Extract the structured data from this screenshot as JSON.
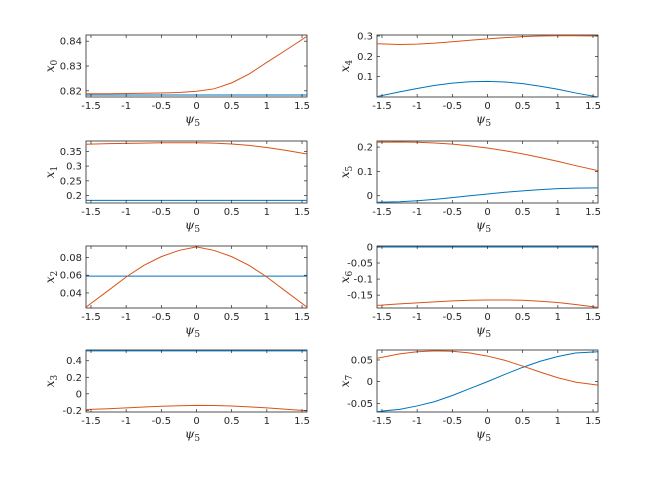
{
  "colors": {
    "series_1": "#0072BD",
    "series_2": "#D95319",
    "axes": "#262626"
  },
  "chart_data": [
    {
      "type": "line",
      "xlabel": "ψ",
      "xlabel_sub": "5",
      "ylabel": "x",
      "ylabel_sub": "0",
      "xlim": [
        -1.5708,
        1.5708
      ],
      "ylim": [
        0.8175,
        0.8425
      ],
      "xticks": [
        -1.5,
        -1,
        -0.5,
        0,
        0.5,
        1,
        1.5
      ],
      "xtick_labels": [
        "-1.5",
        "-1",
        "-0.5",
        "0",
        "0.5",
        "1",
        "1.5"
      ],
      "yticks": [
        0.82,
        0.83,
        0.84
      ],
      "ytick_labels": [
        "0.82",
        "0.83",
        "0.84"
      ],
      "x": [
        -1.5708,
        -1.25,
        -1.0,
        -0.75,
        -0.5,
        -0.25,
        0,
        0.25,
        0.5,
        0.75,
        1.0,
        1.25,
        1.5708
      ],
      "series": [
        {
          "values": [
            0.8183,
            0.8183,
            0.8183,
            0.8183,
            0.8183,
            0.8183,
            0.8183,
            0.8183,
            0.8183,
            0.8183,
            0.8183,
            0.8183,
            0.8183
          ]
        },
        {
          "values": [
            0.8188,
            0.8188,
            0.8189,
            0.819,
            0.8191,
            0.8193,
            0.8198,
            0.8208,
            0.8232,
            0.8268,
            0.8315,
            0.836,
            0.842
          ]
        }
      ]
    },
    {
      "type": "line",
      "xlabel": "ψ",
      "xlabel_sub": "5",
      "ylabel": "x",
      "ylabel_sub": "4",
      "xlim": [
        -1.5708,
        1.5708
      ],
      "ylim": [
        0.0,
        0.305
      ],
      "xticks": [
        -1.5,
        -1,
        -0.5,
        0,
        0.5,
        1,
        1.5
      ],
      "xtick_labels": [
        "-1.5",
        "-1",
        "-0.5",
        "0",
        "0.5",
        "1",
        "1.5"
      ],
      "yticks": [
        0.1,
        0.2,
        0.3
      ],
      "ytick_labels": [
        "0.1",
        "0.2",
        "0.3"
      ],
      "x": [
        -1.5708,
        -1.25,
        -1.0,
        -0.75,
        -0.5,
        -0.25,
        0,
        0.25,
        0.5,
        0.75,
        1.0,
        1.25,
        1.5708
      ],
      "series": [
        {
          "values": [
            0.002,
            0.025,
            0.042,
            0.057,
            0.068,
            0.075,
            0.077,
            0.074,
            0.066,
            0.053,
            0.038,
            0.02,
            0.0
          ]
        },
        {
          "values": [
            0.262,
            0.258,
            0.26,
            0.265,
            0.272,
            0.279,
            0.286,
            0.292,
            0.297,
            0.3,
            0.301,
            0.301,
            0.3
          ]
        }
      ]
    },
    {
      "type": "line",
      "xlabel": "ψ",
      "xlabel_sub": "5",
      "ylabel": "x",
      "ylabel_sub": "1",
      "xlim": [
        -1.5708,
        1.5708
      ],
      "ylim": [
        0.175,
        0.385
      ],
      "xticks": [
        -1.5,
        -1,
        -0.5,
        0,
        0.5,
        1,
        1.5
      ],
      "xtick_labels": [
        "-1.5",
        "-1",
        "-0.5",
        "0",
        "0.5",
        "1",
        "1.5"
      ],
      "yticks": [
        0.2,
        0.25,
        0.3,
        0.35
      ],
      "ytick_labels": [
        "0.2",
        "0.25",
        "0.3",
        "0.35"
      ],
      "x": [
        -1.5708,
        -1.25,
        -1.0,
        -0.75,
        -0.5,
        -0.25,
        0,
        0.25,
        0.5,
        0.75,
        1.0,
        1.25,
        1.5708
      ],
      "series": [
        {
          "values": [
            0.184,
            0.184,
            0.184,
            0.184,
            0.184,
            0.184,
            0.184,
            0.184,
            0.184,
            0.184,
            0.184,
            0.184,
            0.184
          ]
        },
        {
          "values": [
            0.374,
            0.376,
            0.377,
            0.378,
            0.379,
            0.379,
            0.379,
            0.378,
            0.375,
            0.37,
            0.363,
            0.354,
            0.341
          ]
        }
      ]
    },
    {
      "type": "line",
      "xlabel": "ψ",
      "xlabel_sub": "5",
      "ylabel": "x",
      "ylabel_sub": "5",
      "xlim": [
        -1.5708,
        1.5708
      ],
      "ylim": [
        -0.03,
        0.225
      ],
      "xticks": [
        -1.5,
        -1,
        -0.5,
        0,
        0.5,
        1,
        1.5
      ],
      "xtick_labels": [
        "-1.5",
        "-1",
        "-0.5",
        "0",
        "0.5",
        "1",
        "1.5"
      ],
      "yticks": [
        0,
        0.1,
        0.2
      ],
      "ytick_labels": [
        "0",
        "0.1",
        "0.2"
      ],
      "x": [
        -1.5708,
        -1.25,
        -1.0,
        -0.75,
        -0.5,
        -0.25,
        0,
        0.25,
        0.5,
        0.75,
        1.0,
        1.25,
        1.5708
      ],
      "series": [
        {
          "values": [
            -0.027,
            -0.025,
            -0.021,
            -0.015,
            -0.008,
            0.0,
            0.007,
            0.014,
            0.02,
            0.025,
            0.029,
            0.031,
            0.032
          ]
        },
        {
          "values": [
            0.22,
            0.221,
            0.22,
            0.217,
            0.212,
            0.205,
            0.196,
            0.185,
            0.172,
            0.157,
            0.141,
            0.124,
            0.103
          ]
        }
      ]
    },
    {
      "type": "line",
      "xlabel": "ψ",
      "xlabel_sub": "5",
      "ylabel": "x",
      "ylabel_sub": "2",
      "xlim": [
        -1.5708,
        1.5708
      ],
      "ylim": [
        0.023,
        0.093
      ],
      "xticks": [
        -1.5,
        -1,
        -0.5,
        0,
        0.5,
        1,
        1.5
      ],
      "xtick_labels": [
        "-1.5",
        "-1",
        "-0.5",
        "0",
        "0.5",
        "1",
        "1.5"
      ],
      "yticks": [
        0.04,
        0.06,
        0.08
      ],
      "ytick_labels": [
        "0.04",
        "0.06",
        "0.08"
      ],
      "x": [
        -1.5708,
        -1.25,
        -1.0,
        -0.75,
        -0.5,
        -0.25,
        0,
        0.25,
        0.5,
        0.75,
        1.0,
        1.25,
        1.5708
      ],
      "series": [
        {
          "values": [
            0.059,
            0.059,
            0.059,
            0.059,
            0.059,
            0.059,
            0.059,
            0.059,
            0.059,
            0.059,
            0.059,
            0.059,
            0.059
          ]
        },
        {
          "values": [
            0.024,
            0.043,
            0.058,
            0.071,
            0.081,
            0.088,
            0.092,
            0.088,
            0.081,
            0.071,
            0.058,
            0.043,
            0.024
          ]
        }
      ]
    },
    {
      "type": "line",
      "xlabel": "ψ",
      "xlabel_sub": "5",
      "ylabel": "x",
      "ylabel_sub": "6",
      "xlim": [
        -1.5708,
        1.5708
      ],
      "ylim": [
        -0.19,
        0.003
      ],
      "xticks": [
        -1.5,
        -1,
        -0.5,
        0,
        0.5,
        1,
        1.5
      ],
      "xtick_labels": [
        "-1.5",
        "-1",
        "-0.5",
        "0",
        "0.5",
        "1",
        "1.5"
      ],
      "yticks": [
        0,
        -0.05,
        -0.1,
        -0.15
      ],
      "ytick_labels": [
        "0",
        "-0.05",
        "-0.1",
        "-0.15"
      ],
      "x": [
        -1.5708,
        -1.25,
        -1.0,
        -0.75,
        -0.5,
        -0.25,
        0,
        0.25,
        0.5,
        0.75,
        1.0,
        1.25,
        1.5708
      ],
      "series": [
        {
          "values": [
            0.0,
            0.0,
            0.0,
            0.0,
            0.0,
            0.0,
            0.0,
            0.0,
            0.0,
            0.0,
            0.0,
            0.0,
            0.0
          ]
        },
        {
          "values": [
            -0.182,
            -0.177,
            -0.174,
            -0.171,
            -0.168,
            -0.166,
            -0.165,
            -0.165,
            -0.166,
            -0.169,
            -0.173,
            -0.179,
            -0.188
          ]
        }
      ]
    },
    {
      "type": "line",
      "xlabel": "ψ",
      "xlabel_sub": "5",
      "ylabel": "x",
      "ylabel_sub": "3",
      "xlim": [
        -1.5708,
        1.5708
      ],
      "ylim": [
        -0.22,
        0.53
      ],
      "xticks": [
        -1.5,
        -1,
        -0.5,
        0,
        0.5,
        1,
        1.5
      ],
      "xtick_labels": [
        "-1.5",
        "-1",
        "-0.5",
        "0",
        "0.5",
        "1",
        "1.5"
      ],
      "yticks": [
        -0.2,
        0,
        0.2,
        0.4
      ],
      "ytick_labels": [
        "-0.2",
        "0",
        "0.2",
        "0.4"
      ],
      "x": [
        -1.5708,
        -1.25,
        -1.0,
        -0.75,
        -0.5,
        -0.25,
        0,
        0.25,
        0.5,
        0.75,
        1.0,
        1.25,
        1.5708
      ],
      "series": [
        {
          "values": [
            0.52,
            0.52,
            0.52,
            0.52,
            0.52,
            0.52,
            0.52,
            0.52,
            0.52,
            0.52,
            0.52,
            0.52,
            0.52
          ]
        },
        {
          "values": [
            -0.19,
            -0.18,
            -0.17,
            -0.16,
            -0.15,
            -0.145,
            -0.14,
            -0.142,
            -0.148,
            -0.158,
            -0.17,
            -0.185,
            -0.205
          ]
        }
      ]
    },
    {
      "type": "line",
      "xlabel": "ψ",
      "xlabel_sub": "5",
      "ylabel": "x",
      "ylabel_sub": "7",
      "xlim": [
        -1.5708,
        1.5708
      ],
      "ylim": [
        -0.07,
        0.073
      ],
      "xticks": [
        -1.5,
        -1,
        -0.5,
        0,
        0.5,
        1,
        1.5
      ],
      "xtick_labels": [
        "-1.5",
        "-1",
        "-0.5",
        "0",
        "0.5",
        "1",
        "1.5"
      ],
      "yticks": [
        -0.05,
        0,
        0.05
      ],
      "ytick_labels": [
        "-0.05",
        "0",
        "0.05"
      ],
      "x": [
        -1.5708,
        -1.25,
        -1.0,
        -0.75,
        -0.5,
        -0.25,
        0,
        0.25,
        0.5,
        0.75,
        1.0,
        1.25,
        1.5708
      ],
      "series": [
        {
          "values": [
            -0.069,
            -0.064,
            -0.056,
            -0.046,
            -0.032,
            -0.016,
            0.0,
            0.017,
            0.033,
            0.047,
            0.058,
            0.066,
            0.069
          ]
        },
        {
          "values": [
            0.054,
            0.064,
            0.069,
            0.071,
            0.07,
            0.066,
            0.059,
            0.049,
            0.036,
            0.022,
            0.009,
            -0.001,
            -0.008
          ]
        }
      ]
    }
  ]
}
